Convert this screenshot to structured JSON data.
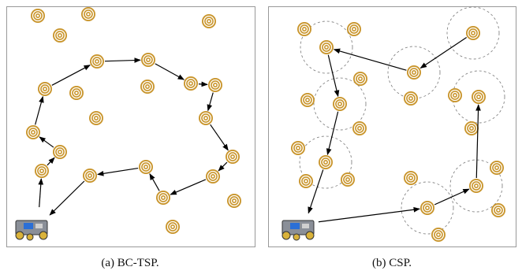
{
  "panels": [
    {
      "caption": "(a) BC-TSP."
    },
    {
      "caption": "(b) CSP."
    }
  ]
}
